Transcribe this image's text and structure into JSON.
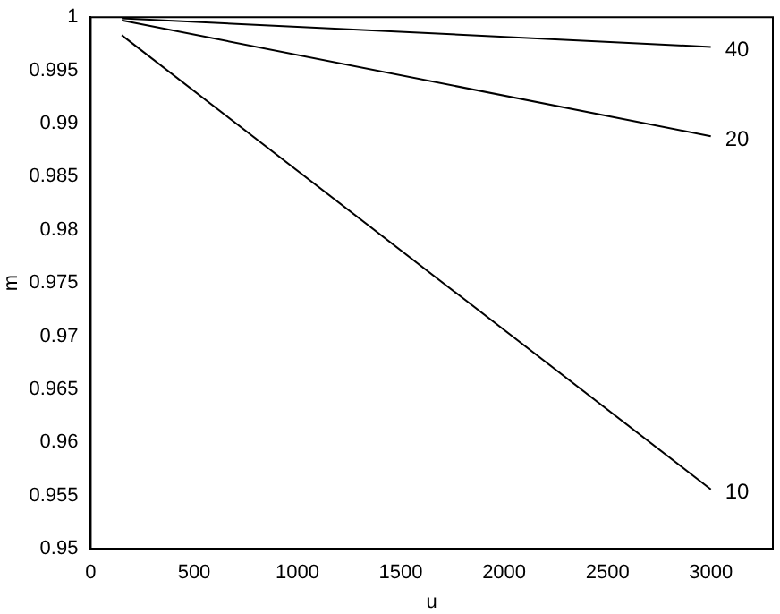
{
  "chart_data": {
    "type": "line",
    "xlabel": "u",
    "ylabel": "m",
    "xlim": [
      0,
      3300
    ],
    "ylim": [
      0.95,
      1
    ],
    "xticks": [
      0,
      500,
      1000,
      1500,
      2000,
      2500,
      3000
    ],
    "yticks": [
      0.95,
      0.955,
      0.96,
      0.965,
      0.97,
      0.975,
      0.98,
      0.985,
      0.99,
      0.995,
      1
    ],
    "grid": false,
    "legend": false,
    "marker": "none",
    "line_style": "solid",
    "x": [
      150,
      3000
    ],
    "series": [
      {
        "name": "40",
        "color": "#000000",
        "values": [
          0.9999,
          0.9972
        ]
      },
      {
        "name": "20",
        "color": "#000000",
        "values": [
          0.9997,
          0.9888
        ]
      },
      {
        "name": "10",
        "color": "#000000",
        "values": [
          0.9983,
          0.9556
        ]
      }
    ]
  }
}
